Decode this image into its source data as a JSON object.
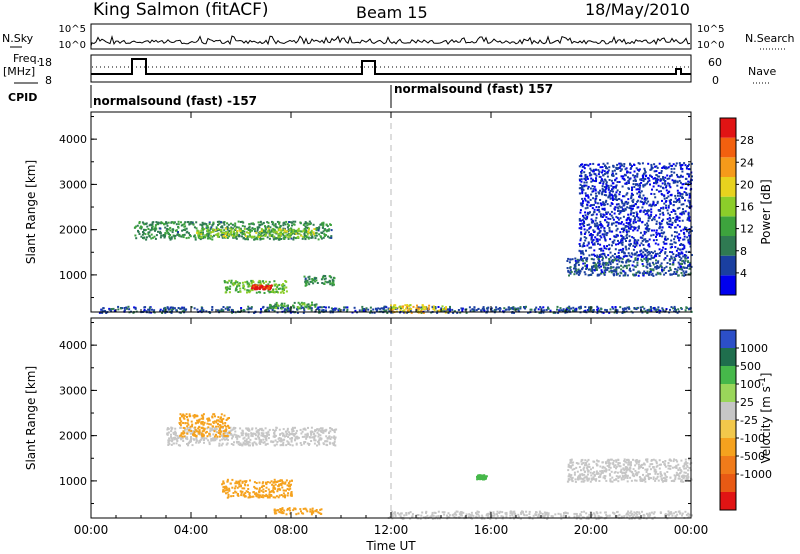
{
  "header": {
    "station": "King Salmon (fitACF)",
    "beam": "Beam 15",
    "date": "18/May/2010"
  },
  "strips": {
    "nsky_label": "N.Sky",
    "nsky_ticks": [
      "10^5",
      "10^0"
    ],
    "nsearch_label": "N.Search",
    "nsearch_ticks": [
      "10^5",
      "10^0"
    ],
    "freq_label": "Freq.",
    "freq_unit": "[MHz]",
    "freq_ticks": [
      "18",
      "8"
    ],
    "nave_label": "Nave",
    "nave_ticks": [
      "60",
      "0"
    ],
    "cpid_label": "CPID",
    "cpid_segments": [
      "normalsound (fast) -157",
      "normalsound (fast) 157"
    ]
  },
  "colors": {
    "power": [
      "#0000ee",
      "#1a3fa0",
      "#2f7a52",
      "#3da33d",
      "#8ccd2a",
      "#e8d21e",
      "#f59a1a",
      "#f2600f",
      "#e11414"
    ],
    "velocity": [
      "#2c4fc8",
      "#1f6e4d",
      "#46b84a",
      "#9ad65a",
      "#c6c6c6",
      "#f2c84b",
      "#f5a21e",
      "#f07b1a",
      "#e85a14",
      "#e11414"
    ]
  },
  "chart_data": [
    {
      "type": "heatmap",
      "name": "power",
      "ylabel": "Slant Range [km]",
      "ylim": [
        180,
        4600
      ],
      "yticks": [
        "1000",
        "2000",
        "3000",
        "4000"
      ],
      "xlim": [
        "00:00",
        "24:00"
      ],
      "colorbar_label": "Power [dB]",
      "colorbar_ticks": [
        "4",
        "8",
        "12",
        "16",
        "20",
        "24",
        "28"
      ],
      "colorbar_range": [
        0,
        32
      ],
      "features": [
        {
          "t0": 0.3,
          "t1": 24.0,
          "r0": 180,
          "r1": 320,
          "value": 6
        },
        {
          "t0": 1.7,
          "t1": 9.6,
          "r0": 1800,
          "r1": 2200,
          "value": 10
        },
        {
          "t0": 4.2,
          "t1": 8.9,
          "r0": 1850,
          "r1": 2050,
          "value": 16
        },
        {
          "t0": 5.3,
          "t1": 7.8,
          "r0": 620,
          "r1": 900,
          "value": 14
        },
        {
          "t0": 6.4,
          "t1": 7.2,
          "r0": 700,
          "r1": 800,
          "value": 30
        },
        {
          "t0": 7.1,
          "t1": 9.0,
          "r0": 270,
          "r1": 420,
          "value": 12
        },
        {
          "t0": 8.5,
          "t1": 9.7,
          "r0": 780,
          "r1": 1000,
          "value": 10
        },
        {
          "t0": 11.9,
          "t1": 14.2,
          "r0": 180,
          "r1": 360,
          "value": 20
        },
        {
          "t0": 19.0,
          "t1": 24.0,
          "r0": 1000,
          "r1": 1400,
          "value": 6
        },
        {
          "t0": 19.5,
          "t1": 24.0,
          "r0": 1400,
          "r1": 3500,
          "value": 4
        }
      ]
    },
    {
      "type": "heatmap",
      "name": "velocity",
      "ylabel": "Slant Range [km]",
      "ylim": [
        180,
        4600
      ],
      "yticks": [
        "1000",
        "2000",
        "3000",
        "4000"
      ],
      "xlim": [
        "00:00",
        "24:00"
      ],
      "xticks": [
        "00:00",
        "04:00",
        "08:00",
        "12:00",
        "16:00",
        "20:00",
        "00:00"
      ],
      "xlabel": "Time UT",
      "colorbar_label": "Velocity [m s",
      "colorbar_label_exp": "-1",
      "colorbar_label_close": "]",
      "colorbar_ticks": [
        "1000",
        "500",
        "100",
        "25",
        "-25",
        "-100",
        "-500",
        "-1000"
      ],
      "features": [
        {
          "t0": 3.0,
          "t1": 9.8,
          "r0": 1800,
          "r1": 2200,
          "value": 0
        },
        {
          "t0": 3.5,
          "t1": 5.5,
          "r0": 2000,
          "r1": 2500,
          "value": -200
        },
        {
          "t0": 5.2,
          "t1": 8.0,
          "r0": 650,
          "r1": 1050,
          "value": -300
        },
        {
          "t0": 7.3,
          "t1": 9.2,
          "r0": 280,
          "r1": 420,
          "value": -150
        },
        {
          "t0": 11.8,
          "t1": 24.0,
          "r0": 180,
          "r1": 350,
          "value": 0
        },
        {
          "t0": 19.0,
          "t1": 24.0,
          "r0": 1000,
          "r1": 1500,
          "value": 0
        },
        {
          "t0": 15.4,
          "t1": 15.8,
          "r0": 1050,
          "r1": 1150,
          "value": 150
        }
      ]
    }
  ]
}
